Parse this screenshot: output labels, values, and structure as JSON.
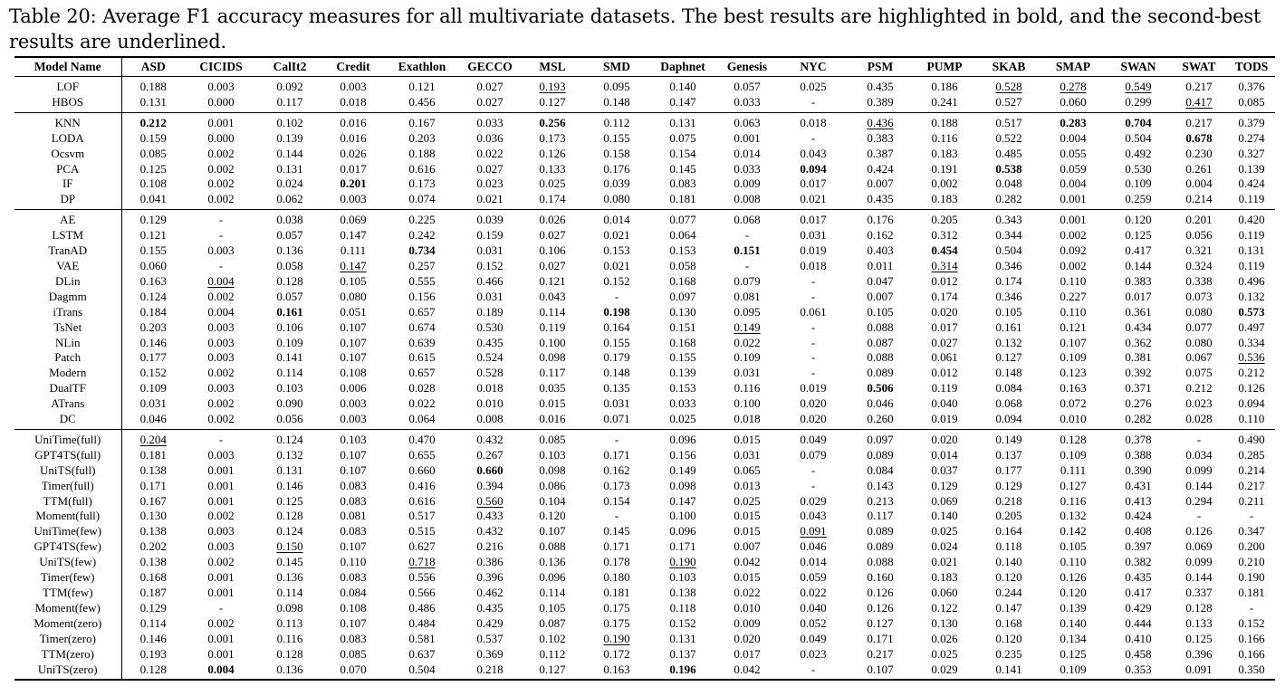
{
  "caption": "Table 20: Average F1 accuracy measures for all multivariate datasets. The best results are highlighted in bold, and the second-best results are underlined.",
  "columns": [
    "Model Name",
    "ASD",
    "CICIDS",
    "CalIt2",
    "Credit",
    "Exathlon",
    "GECCO",
    "MSL",
    "SMD",
    "Daphnet",
    "Genesis",
    "NYC",
    "PSM",
    "PUMP",
    "SKAB",
    "SMAP",
    "SWAN",
    "SWAT",
    "TODS"
  ],
  "groups": [
    [
      {
        "name": "LOF",
        "v": [
          "0.188",
          "0.003",
          "0.092",
          "0.003",
          "0.121",
          "0.027",
          "0.193",
          "0.095",
          "0.140",
          "0.057",
          "0.025",
          "0.435",
          "0.186",
          "0.528",
          "0.278",
          "0.549",
          "0.217",
          "0.376"
        ],
        "u": [
          6,
          13,
          14,
          15
        ]
      },
      {
        "name": "HBOS",
        "v": [
          "0.131",
          "0.000",
          "0.117",
          "0.018",
          "0.456",
          "0.027",
          "0.127",
          "0.148",
          "0.147",
          "0.033",
          "-",
          "0.389",
          "0.241",
          "0.527",
          "0.060",
          "0.299",
          "0.417",
          "0.085"
        ],
        "u": [
          16
        ]
      }
    ],
    [
      {
        "name": "KNN",
        "v": [
          "0.212",
          "0.001",
          "0.102",
          "0.016",
          "0.167",
          "0.033",
          "0.256",
          "0.112",
          "0.131",
          "0.063",
          "0.018",
          "0.436",
          "0.188",
          "0.517",
          "0.283",
          "0.704",
          "0.217",
          "0.379"
        ],
        "b": [
          0,
          6,
          14,
          15
        ],
        "u": [
          11
        ]
      },
      {
        "name": "LODA",
        "v": [
          "0.159",
          "0.000",
          "0.139",
          "0.016",
          "0.203",
          "0.036",
          "0.173",
          "0.155",
          "0.075",
          "0.001",
          "-",
          "0.383",
          "0.116",
          "0.522",
          "0.004",
          "0.504",
          "0.678",
          "0.274"
        ],
        "b": [
          16
        ]
      },
      {
        "name": "Ocsvm",
        "v": [
          "0.085",
          "0.002",
          "0.144",
          "0.026",
          "0.188",
          "0.022",
          "0.126",
          "0.158",
          "0.154",
          "0.014",
          "0.043",
          "0.387",
          "0.183",
          "0.485",
          "0.055",
          "0.492",
          "0.230",
          "0.327"
        ]
      },
      {
        "name": "PCA",
        "v": [
          "0.125",
          "0.002",
          "0.131",
          "0.017",
          "0.616",
          "0.027",
          "0.133",
          "0.176",
          "0.145",
          "0.033",
          "0.094",
          "0.424",
          "0.191",
          "0.538",
          "0.059",
          "0.530",
          "0.261",
          "0.139"
        ],
        "b": [
          10,
          13
        ]
      },
      {
        "name": "IF",
        "v": [
          "0.108",
          "0.002",
          "0.024",
          "0.201",
          "0.173",
          "0.023",
          "0.025",
          "0.039",
          "0.083",
          "0.009",
          "0.017",
          "0.007",
          "0.002",
          "0.048",
          "0.004",
          "0.109",
          "0.004",
          "0.424"
        ],
        "b": [
          3
        ]
      },
      {
        "name": "DP",
        "v": [
          "0.041",
          "0.002",
          "0.062",
          "0.003",
          "0.074",
          "0.021",
          "0.174",
          "0.080",
          "0.181",
          "0.008",
          "0.021",
          "0.435",
          "0.183",
          "0.282",
          "0.001",
          "0.259",
          "0.214",
          "0.119"
        ]
      }
    ],
    [
      {
        "name": "AE",
        "v": [
          "0.129",
          "-",
          "0.038",
          "0.069",
          "0.225",
          "0.039",
          "0.026",
          "0.014",
          "0.077",
          "0.068",
          "0.017",
          "0.176",
          "0.205",
          "0.343",
          "0.001",
          "0.120",
          "0.201",
          "0.420"
        ]
      },
      {
        "name": "LSTM",
        "v": [
          "0.121",
          "-",
          "0.057",
          "0.147",
          "0.242",
          "0.159",
          "0.027",
          "0.021",
          "0.064",
          "-",
          "0.031",
          "0.162",
          "0.312",
          "0.344",
          "0.002",
          "0.125",
          "0.056",
          "0.119"
        ]
      },
      {
        "name": "TranAD",
        "v": [
          "0.155",
          "0.003",
          "0.136",
          "0.111",
          "0.734",
          "0.031",
          "0.106",
          "0.153",
          "0.153",
          "0.151",
          "0.019",
          "0.403",
          "0.454",
          "0.504",
          "0.092",
          "0.417",
          "0.321",
          "0.131"
        ],
        "b": [
          4,
          9,
          12
        ]
      },
      {
        "name": "VAE",
        "v": [
          "0.060",
          "-",
          "0.058",
          "0.147",
          "0.257",
          "0.152",
          "0.027",
          "0.021",
          "0.058",
          "-",
          "0.018",
          "0.011",
          "0.314",
          "0.346",
          "0.002",
          "0.144",
          "0.324",
          "0.119"
        ],
        "u": [
          3,
          12
        ]
      },
      {
        "name": "DLin",
        "v": [
          "0.163",
          "0.004",
          "0.128",
          "0.105",
          "0.555",
          "0.466",
          "0.121",
          "0.152",
          "0.168",
          "0.079",
          "-",
          "0.047",
          "0.012",
          "0.174",
          "0.110",
          "0.383",
          "0.338",
          "0.496"
        ],
        "u": [
          1
        ]
      },
      {
        "name": "Dagmm",
        "v": [
          "0.124",
          "0.002",
          "0.057",
          "0.080",
          "0.156",
          "0.031",
          "0.043",
          "-",
          "0.097",
          "0.081",
          "-",
          "0.007",
          "0.174",
          "0.346",
          "0.227",
          "0.017",
          "0.073",
          "0.132"
        ]
      },
      {
        "name": "iTrans",
        "v": [
          "0.184",
          "0.004",
          "0.161",
          "0.051",
          "0.657",
          "0.189",
          "0.114",
          "0.198",
          "0.130",
          "0.095",
          "0.061",
          "0.105",
          "0.020",
          "0.105",
          "0.110",
          "0.361",
          "0.080",
          "0.573"
        ],
        "b": [
          2,
          7,
          17
        ]
      },
      {
        "name": "TsNet",
        "v": [
          "0.203",
          "0.003",
          "0.106",
          "0.107",
          "0.674",
          "0.530",
          "0.119",
          "0.164",
          "0.151",
          "0.149",
          "-",
          "0.088",
          "0.017",
          "0.161",
          "0.121",
          "0.434",
          "0.077",
          "0.497"
        ],
        "u": [
          9
        ]
      },
      {
        "name": "NLin",
        "v": [
          "0.146",
          "0.003",
          "0.109",
          "0.107",
          "0.639",
          "0.435",
          "0.100",
          "0.155",
          "0.168",
          "0.022",
          "-",
          "0.087",
          "0.027",
          "0.132",
          "0.107",
          "0.362",
          "0.080",
          "0.334"
        ]
      },
      {
        "name": "Patch",
        "v": [
          "0.177",
          "0.003",
          "0.141",
          "0.107",
          "0.615",
          "0.524",
          "0.098",
          "0.179",
          "0.155",
          "0.109",
          "-",
          "0.088",
          "0.061",
          "0.127",
          "0.109",
          "0.381",
          "0.067",
          "0.536"
        ],
        "u": [
          17
        ]
      },
      {
        "name": "Modern",
        "v": [
          "0.152",
          "0.002",
          "0.114",
          "0.108",
          "0.657",
          "0.528",
          "0.117",
          "0.148",
          "0.139",
          "0.031",
          "-",
          "0.089",
          "0.012",
          "0.148",
          "0.123",
          "0.392",
          "0.075",
          "0.212"
        ]
      },
      {
        "name": "DualTF",
        "v": [
          "0.109",
          "0.003",
          "0.103",
          "0.006",
          "0.028",
          "0.018",
          "0.035",
          "0.135",
          "0.153",
          "0.116",
          "0.019",
          "0.506",
          "0.119",
          "0.084",
          "0.163",
          "0.371",
          "0.212",
          "0.126"
        ],
        "b": [
          11
        ]
      },
      {
        "name": "ATrans",
        "v": [
          "0.031",
          "0.002",
          "0.090",
          "0.003",
          "0.022",
          "0.010",
          "0.015",
          "0.031",
          "0.033",
          "0.100",
          "0.020",
          "0.046",
          "0.040",
          "0.068",
          "0.072",
          "0.276",
          "0.023",
          "0.094"
        ]
      },
      {
        "name": "DC",
        "v": [
          "0.046",
          "0.002",
          "0.056",
          "0.003",
          "0.064",
          "0.008",
          "0.016",
          "0.071",
          "0.025",
          "0.018",
          "0.020",
          "0.260",
          "0.019",
          "0.094",
          "0.010",
          "0.282",
          "0.028",
          "0.110"
        ]
      }
    ],
    [
      {
        "name": "UniTime(full)",
        "v": [
          "0.204",
          "-",
          "0.124",
          "0.103",
          "0.470",
          "0.432",
          "0.085",
          "-",
          "0.096",
          "0.015",
          "0.049",
          "0.097",
          "0.020",
          "0.149",
          "0.128",
          "0.378",
          "-",
          "0.490"
        ],
        "u": [
          0
        ]
      },
      {
        "name": "GPT4TS(full)",
        "v": [
          "0.181",
          "0.003",
          "0.132",
          "0.107",
          "0.655",
          "0.267",
          "0.103",
          "0.171",
          "0.156",
          "0.031",
          "0.079",
          "0.089",
          "0.014",
          "0.137",
          "0.109",
          "0.388",
          "0.034",
          "0.285"
        ]
      },
      {
        "name": "UniTS(full)",
        "v": [
          "0.138",
          "0.001",
          "0.131",
          "0.107",
          "0.660",
          "0.660",
          "0.098",
          "0.162",
          "0.149",
          "0.065",
          "-",
          "0.084",
          "0.037",
          "0.177",
          "0.111",
          "0.390",
          "0.099",
          "0.214"
        ],
        "b": [
          5
        ]
      },
      {
        "name": "Timer(full)",
        "v": [
          "0.171",
          "0.001",
          "0.146",
          "0.083",
          "0.416",
          "0.394",
          "0.086",
          "0.173",
          "0.098",
          "0.013",
          "-",
          "0.143",
          "0.129",
          "0.129",
          "0.127",
          "0.431",
          "0.144",
          "0.217"
        ]
      },
      {
        "name": "TTM(full)",
        "v": [
          "0.167",
          "0.001",
          "0.125",
          "0.083",
          "0.616",
          "0.560",
          "0.104",
          "0.154",
          "0.147",
          "0.025",
          "0.029",
          "0.213",
          "0.069",
          "0.218",
          "0.116",
          "0.413",
          "0.294",
          "0.211"
        ],
        "u": [
          5
        ]
      },
      {
        "name": "Moment(full)",
        "v": [
          "0.130",
          "0.002",
          "0.128",
          "0.081",
          "0.517",
          "0.433",
          "0.120",
          "-",
          "0.100",
          "0.015",
          "0.043",
          "0.117",
          "0.140",
          "0.205",
          "0.132",
          "0.424",
          "-",
          "-"
        ]
      },
      {
        "name": "UniTime(few)",
        "v": [
          "0.138",
          "0.003",
          "0.124",
          "0.083",
          "0.515",
          "0.432",
          "0.107",
          "0.145",
          "0.096",
          "0.015",
          "0.091",
          "0.089",
          "0.025",
          "0.164",
          "0.142",
          "0.408",
          "0.126",
          "0.347"
        ],
        "u": [
          10
        ]
      },
      {
        "name": "GPT4TS(few)",
        "v": [
          "0.202",
          "0.003",
          "0.150",
          "0.107",
          "0.627",
          "0.216",
          "0.088",
          "0.171",
          "0.171",
          "0.007",
          "0.046",
          "0.089",
          "0.024",
          "0.118",
          "0.105",
          "0.397",
          "0.069",
          "0.200"
        ],
        "u": [
          2
        ]
      },
      {
        "name": "UniTS(few)",
        "v": [
          "0.138",
          "0.002",
          "0.145",
          "0.110",
          "0.718",
          "0.386",
          "0.136",
          "0.178",
          "0.190",
          "0.042",
          "0.014",
          "0.088",
          "0.021",
          "0.140",
          "0.110",
          "0.382",
          "0.099",
          "0.210"
        ],
        "u": [
          4,
          8
        ]
      },
      {
        "name": "Timer(few)",
        "v": [
          "0.168",
          "0.001",
          "0.136",
          "0.083",
          "0.556",
          "0.396",
          "0.096",
          "0.180",
          "0.103",
          "0.015",
          "0.059",
          "0.160",
          "0.183",
          "0.120",
          "0.126",
          "0.435",
          "0.144",
          "0.190"
        ]
      },
      {
        "name": "TTM(few)",
        "v": [
          "0.187",
          "0.001",
          "0.114",
          "0.084",
          "0.566",
          "0.462",
          "0.114",
          "0.181",
          "0.138",
          "0.022",
          "0.022",
          "0.126",
          "0.060",
          "0.244",
          "0.120",
          "0.417",
          "0.337",
          "0.181"
        ]
      },
      {
        "name": "Moment(few)",
        "v": [
          "0.129",
          "-",
          "0.098",
          "0.108",
          "0.486",
          "0.435",
          "0.105",
          "0.175",
          "0.118",
          "0.010",
          "0.040",
          "0.126",
          "0.122",
          "0.147",
          "0.139",
          "0.429",
          "0.128",
          "-"
        ]
      },
      {
        "name": "Moment(zero)",
        "v": [
          "0.114",
          "0.002",
          "0.113",
          "0.107",
          "0.484",
          "0.429",
          "0.087",
          "0.175",
          "0.152",
          "0.009",
          "0.052",
          "0.127",
          "0.130",
          "0.168",
          "0.140",
          "0.444",
          "0.133",
          "0.152"
        ]
      },
      {
        "name": "Timer(zero)",
        "v": [
          "0.146",
          "0.001",
          "0.116",
          "0.083",
          "0.581",
          "0.537",
          "0.102",
          "0.190",
          "0.131",
          "0.020",
          "0.049",
          "0.171",
          "0.026",
          "0.120",
          "0.134",
          "0.410",
          "0.125",
          "0.166"
        ],
        "u": [
          7
        ]
      },
      {
        "name": "TTM(zero)",
        "v": [
          "0.193",
          "0.001",
          "0.128",
          "0.085",
          "0.637",
          "0.369",
          "0.112",
          "0.172",
          "0.137",
          "0.017",
          "0.023",
          "0.217",
          "0.025",
          "0.235",
          "0.125",
          "0.458",
          "0.396",
          "0.166"
        ]
      },
      {
        "name": "UniTS(zero)",
        "v": [
          "0.128",
          "0.004",
          "0.136",
          "0.070",
          "0.504",
          "0.218",
          "0.127",
          "0.163",
          "0.196",
          "0.042",
          "-",
          "0.107",
          "0.029",
          "0.141",
          "0.109",
          "0.353",
          "0.091",
          "0.350"
        ],
        "b": [
          1,
          8
        ]
      }
    ]
  ]
}
